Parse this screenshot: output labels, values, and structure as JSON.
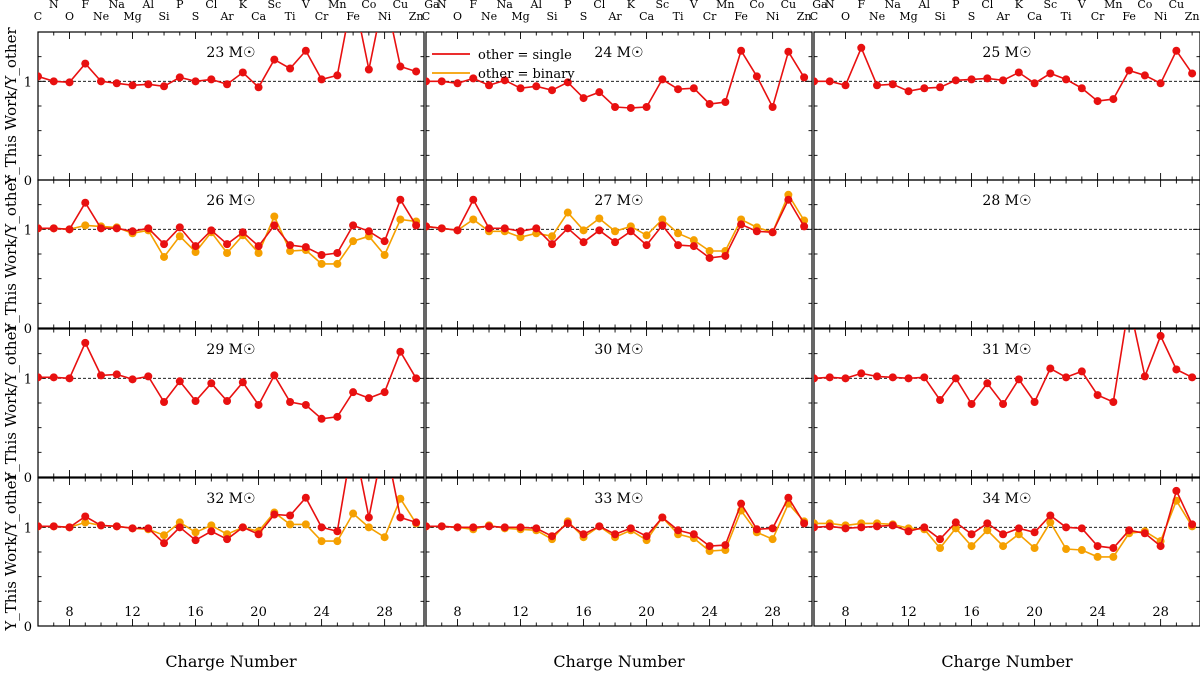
{
  "figure": {
    "xlabel": "Charge Number",
    "ylabel": "Y_This Work/Y_other",
    "x_ticks": [
      "8",
      "12",
      "16",
      "20",
      "24",
      "28"
    ],
    "y_ticks": [
      "0",
      "1"
    ],
    "elements_top": [
      "N",
      "F",
      "Na",
      "Al",
      "P",
      "Cl",
      "K",
      "Sc",
      "V",
      "Mn",
      "Co",
      "Cu",
      "Ga"
    ],
    "elements_bottom": [
      "C",
      "O",
      "Ne",
      "Mg",
      "Si",
      "S",
      "Ar",
      "Ca",
      "Ti",
      "Cr",
      "Fe",
      "Ni",
      "Zn"
    ],
    "legend": [
      {
        "label": "other = single",
        "color": "#e81010"
      },
      {
        "label": "other = binary",
        "color": "#f5a000"
      }
    ],
    "colors": {
      "single": "#e81010",
      "binary": "#f5a000",
      "reference_line": "#000000"
    }
  },
  "chart_data": [
    {
      "type": "line",
      "title": "23 M☉",
      "x": [
        6,
        7,
        8,
        9,
        10,
        11,
        12,
        13,
        14,
        15,
        16,
        17,
        18,
        19,
        20,
        21,
        22,
        23,
        24,
        25,
        26,
        27,
        28,
        29,
        30
      ],
      "ylim": [
        0,
        1.5
      ],
      "xlim": [
        6,
        30.5
      ],
      "series": [
        {
          "name": "other = single",
          "values": [
            1.05,
            1.0,
            0.99,
            1.18,
            1.0,
            0.98,
            0.96,
            0.97,
            0.95,
            1.04,
            1.0,
            1.02,
            0.97,
            1.09,
            0.94,
            1.22,
            1.13,
            1.31,
            1.02,
            1.06,
            1.9,
            1.12,
            1.9,
            1.15,
            1.1
          ]
        }
      ]
    },
    {
      "type": "line",
      "title": "24 M☉",
      "x": [
        6,
        7,
        8,
        9,
        10,
        11,
        12,
        13,
        14,
        15,
        16,
        17,
        18,
        19,
        20,
        21,
        22,
        23,
        24,
        25,
        26,
        27,
        28,
        29,
        30
      ],
      "ylim": [
        0,
        1.5
      ],
      "xlim": [
        6,
        30.5
      ],
      "series": [
        {
          "name": "other = single",
          "values": [
            1.0,
            1.0,
            0.98,
            1.03,
            0.96,
            1.01,
            0.93,
            0.95,
            0.91,
            0.99,
            0.83,
            0.89,
            0.74,
            0.73,
            0.74,
            1.02,
            0.92,
            0.93,
            0.77,
            0.79,
            1.31,
            1.05,
            0.74,
            1.3,
            1.04
          ]
        }
      ]
    },
    {
      "type": "line",
      "title": "25 M☉",
      "x": [
        6,
        7,
        8,
        9,
        10,
        11,
        12,
        13,
        14,
        15,
        16,
        17,
        18,
        19,
        20,
        21,
        22,
        23,
        24,
        25,
        26,
        27,
        28,
        29,
        30
      ],
      "ylim": [
        0,
        1.5
      ],
      "xlim": [
        6,
        30.5
      ],
      "series": [
        {
          "name": "other = single",
          "values": [
            1.0,
            1.0,
            0.96,
            1.34,
            0.96,
            0.97,
            0.9,
            0.93,
            0.94,
            1.01,
            1.02,
            1.03,
            1.01,
            1.09,
            0.98,
            1.08,
            1.02,
            0.93,
            0.8,
            0.82,
            1.11,
            1.06,
            0.98,
            1.31,
            1.08
          ]
        }
      ]
    },
    {
      "type": "line",
      "title": "26 M☉",
      "x": [
        6,
        7,
        8,
        9,
        10,
        11,
        12,
        13,
        14,
        15,
        16,
        17,
        18,
        19,
        20,
        21,
        22,
        23,
        24,
        25,
        26,
        27,
        28,
        29,
        30
      ],
      "ylim": [
        0,
        1.5
      ],
      "xlim": [
        6,
        30.5
      ],
      "series": [
        {
          "name": "other = single",
          "values": [
            1.01,
            1.01,
            1.0,
            1.27,
            1.01,
            1.01,
            0.98,
            1.01,
            0.85,
            1.02,
            0.83,
            0.99,
            0.85,
            0.97,
            0.83,
            1.04,
            0.84,
            0.82,
            0.74,
            0.76,
            1.04,
            0.98,
            0.88,
            1.3,
            1.04
          ]
        },
        {
          "name": "other = binary",
          "values": [
            1.01,
            1.01,
            1.0,
            1.04,
            1.03,
            1.02,
            0.96,
            0.99,
            0.72,
            0.93,
            0.77,
            0.97,
            0.76,
            0.94,
            0.76,
            1.13,
            0.78,
            0.79,
            0.65,
            0.65,
            0.88,
            0.93,
            0.74,
            1.1,
            1.08
          ]
        }
      ]
    },
    {
      "type": "line",
      "title": "27 M☉",
      "x": [
        6,
        7,
        8,
        9,
        10,
        11,
        12,
        13,
        14,
        15,
        16,
        17,
        18,
        19,
        20,
        21,
        22,
        23,
        24,
        25,
        26,
        27,
        28,
        29,
        30
      ],
      "ylim": [
        0,
        1.5
      ],
      "xlim": [
        6,
        30.5
      ],
      "series": [
        {
          "name": "other = single",
          "values": [
            1.03,
            1.01,
            0.99,
            1.3,
            1.01,
            1.01,
            0.98,
            1.01,
            0.85,
            1.01,
            0.87,
            0.99,
            0.87,
            0.98,
            0.84,
            1.04,
            0.84,
            0.83,
            0.71,
            0.73,
            1.05,
            0.98,
            0.97,
            1.3,
            1.03
          ]
        },
        {
          "name": "other = binary",
          "values": [
            1.03,
            1.01,
            0.99,
            1.1,
            0.98,
            0.98,
            0.92,
            0.96,
            0.93,
            1.17,
            0.99,
            1.11,
            0.98,
            1.03,
            0.94,
            1.1,
            0.96,
            0.89,
            0.78,
            0.78,
            1.1,
            1.02,
            0.97,
            1.35,
            1.09
          ]
        }
      ]
    },
    {
      "type": "line",
      "title": "28 M☉",
      "x": [],
      "ylim": [
        0,
        1.5
      ],
      "xlim": [
        6,
        30.5
      ],
      "series": []
    },
    {
      "type": "line",
      "title": "29 M☉",
      "x": [
        6,
        7,
        8,
        9,
        10,
        11,
        12,
        13,
        14,
        15,
        16,
        17,
        18,
        19,
        20,
        21,
        22,
        23,
        24,
        25,
        26,
        27,
        28,
        29,
        30
      ],
      "ylim": [
        0,
        1.5
      ],
      "xlim": [
        6,
        30.5
      ],
      "series": [
        {
          "name": "other = single",
          "values": [
            1.01,
            1.01,
            1.0,
            1.36,
            1.03,
            1.04,
            0.99,
            1.02,
            0.76,
            0.97,
            0.77,
            0.95,
            0.77,
            0.96,
            0.73,
            1.03,
            0.76,
            0.73,
            0.59,
            0.61,
            0.86,
            0.8,
            0.86,
            1.27,
            1.0
          ]
        }
      ]
    },
    {
      "type": "line",
      "title": "30 M☉",
      "x": [],
      "ylim": [
        0,
        1.5
      ],
      "xlim": [
        6,
        30.5
      ],
      "series": []
    },
    {
      "type": "line",
      "title": "31 M☉",
      "x": [
        6,
        7,
        8,
        9,
        10,
        11,
        12,
        13,
        14,
        15,
        16,
        17,
        18,
        19,
        20,
        21,
        22,
        23,
        24,
        25,
        26,
        27,
        28,
        29,
        30
      ],
      "ylim": [
        0,
        1.5
      ],
      "xlim": [
        6,
        30.5
      ],
      "series": [
        {
          "name": "other = single",
          "values": [
            1.0,
            1.01,
            1.0,
            1.05,
            1.02,
            1.01,
            1.0,
            1.01,
            0.78,
            1.0,
            0.74,
            0.95,
            0.74,
            0.99,
            0.76,
            1.1,
            1.01,
            1.07,
            0.83,
            0.76,
            1.76,
            1.02,
            1.43,
            1.09,
            1.01
          ]
        }
      ]
    },
    {
      "type": "line",
      "title": "32 M☉",
      "x": [
        6,
        7,
        8,
        9,
        10,
        11,
        12,
        13,
        14,
        15,
        16,
        17,
        18,
        19,
        20,
        21,
        22,
        23,
        24,
        25,
        26,
        27,
        28,
        29,
        30
      ],
      "ylim": [
        0,
        1.5
      ],
      "xlim": [
        6,
        30.5
      ],
      "series": [
        {
          "name": "other = single",
          "values": [
            1.01,
            1.01,
            1.0,
            1.11,
            1.02,
            1.01,
            0.99,
            0.99,
            0.84,
            1.0,
            0.87,
            0.96,
            0.88,
            1.0,
            0.93,
            1.13,
            1.12,
            1.3,
            1.0,
            0.96,
            1.9,
            1.1,
            1.9,
            1.1,
            1.05
          ]
        },
        {
          "name": "other = binary",
          "values": [
            1.01,
            1.01,
            1.0,
            1.05,
            1.02,
            1.01,
            0.99,
            0.98,
            0.92,
            1.05,
            0.95,
            1.02,
            0.93,
            1.0,
            0.96,
            1.15,
            1.03,
            1.03,
            0.86,
            0.86,
            1.14,
            1.0,
            0.9,
            1.29,
            1.04
          ]
        }
      ]
    },
    {
      "type": "line",
      "title": "33 M☉",
      "x": [
        6,
        7,
        8,
        9,
        10,
        11,
        12,
        13,
        14,
        15,
        16,
        17,
        18,
        19,
        20,
        21,
        22,
        23,
        24,
        25,
        26,
        27,
        28,
        29,
        30
      ],
      "ylim": [
        0,
        1.5
      ],
      "xlim": [
        6,
        30.5
      ],
      "series": [
        {
          "name": "other = single",
          "values": [
            1.01,
            1.01,
            1.0,
            1.0,
            1.01,
            1.0,
            1.0,
            0.99,
            0.91,
            1.04,
            0.93,
            1.01,
            0.93,
            0.99,
            0.91,
            1.1,
            0.97,
            0.93,
            0.81,
            0.82,
            1.24,
            0.98,
            0.99,
            1.3,
            1.04
          ]
        },
        {
          "name": "other = binary",
          "values": [
            1.01,
            1.01,
            1.0,
            0.98,
            1.02,
            0.99,
            0.98,
            0.97,
            0.88,
            1.06,
            0.9,
            1.01,
            0.9,
            0.97,
            0.87,
            1.1,
            0.93,
            0.89,
            0.76,
            0.77,
            1.17,
            0.95,
            0.88,
            1.24,
            1.06
          ]
        }
      ]
    },
    {
      "type": "line",
      "title": "34 M☉",
      "x": [
        6,
        7,
        8,
        9,
        10,
        11,
        12,
        13,
        14,
        15,
        16,
        17,
        18,
        19,
        20,
        21,
        22,
        23,
        24,
        25,
        26,
        27,
        28,
        29,
        30
      ],
      "ylim": [
        0,
        1.5
      ],
      "xlim": [
        6,
        30.5
      ],
      "series": [
        {
          "name": "other = single",
          "values": [
            1.0,
            1.01,
            0.99,
            1.0,
            1.01,
            1.02,
            0.96,
            1.0,
            0.88,
            1.05,
            0.93,
            1.04,
            0.93,
            0.99,
            0.95,
            1.12,
            1.0,
            0.99,
            0.81,
            0.79,
            0.97,
            0.94,
            0.81,
            1.37,
            1.03
          ]
        },
        {
          "name": "other = binary",
          "values": [
            1.04,
            1.04,
            1.02,
            1.04,
            1.04,
            1.03,
            0.99,
            0.98,
            0.79,
            0.99,
            0.81,
            0.97,
            0.81,
            0.93,
            0.79,
            1.05,
            0.78,
            0.77,
            0.7,
            0.7,
            0.94,
            0.96,
            0.86,
            1.27,
            1.01
          ]
        }
      ]
    }
  ]
}
